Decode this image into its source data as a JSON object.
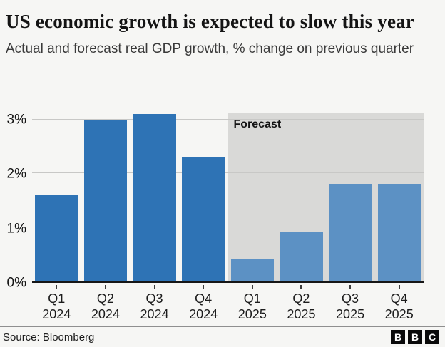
{
  "header": {
    "title": "US economic growth is expected to slow this year",
    "subtitle": "Actual and forecast real GDP growth, % change on previous quarter"
  },
  "chart_data": {
    "type": "bar",
    "title": "US economic growth is expected to slow this year",
    "subtitle": "Actual and forecast real GDP growth, % change on previous quarter",
    "categories": [
      {
        "quarter": "Q1",
        "year": "2024"
      },
      {
        "quarter": "Q2",
        "year": "2024"
      },
      {
        "quarter": "Q3",
        "year": "2024"
      },
      {
        "quarter": "Q4",
        "year": "2024"
      },
      {
        "quarter": "Q1",
        "year": "2025"
      },
      {
        "quarter": "Q2",
        "year": "2025"
      },
      {
        "quarter": "Q3",
        "year": "2025"
      },
      {
        "quarter": "Q4",
        "year": "2025"
      }
    ],
    "values": [
      1.6,
      3.0,
      3.1,
      2.3,
      0.4,
      0.9,
      1.8,
      1.8
    ],
    "unit": "%",
    "forecast_start_index": 4,
    "forecast_label": "Forecast",
    "yticks": [
      {
        "label": "0%",
        "value": 0
      },
      {
        "label": "1%",
        "value": 1
      },
      {
        "label": "2%",
        "value": 2
      },
      {
        "label": "3%",
        "value": 3
      }
    ],
    "ylim": [
      0,
      3.13
    ],
    "grid": true,
    "colors": {
      "actual_bar": "#2e73b5",
      "forecast_bar": "#5c91c4",
      "forecast_background": "#d9d9d7",
      "gridline": "#c8c8c6",
      "axis_line": "#161616"
    }
  },
  "footer": {
    "source": "Source: Bloomberg",
    "logo_letters": [
      "B",
      "B",
      "C"
    ]
  }
}
